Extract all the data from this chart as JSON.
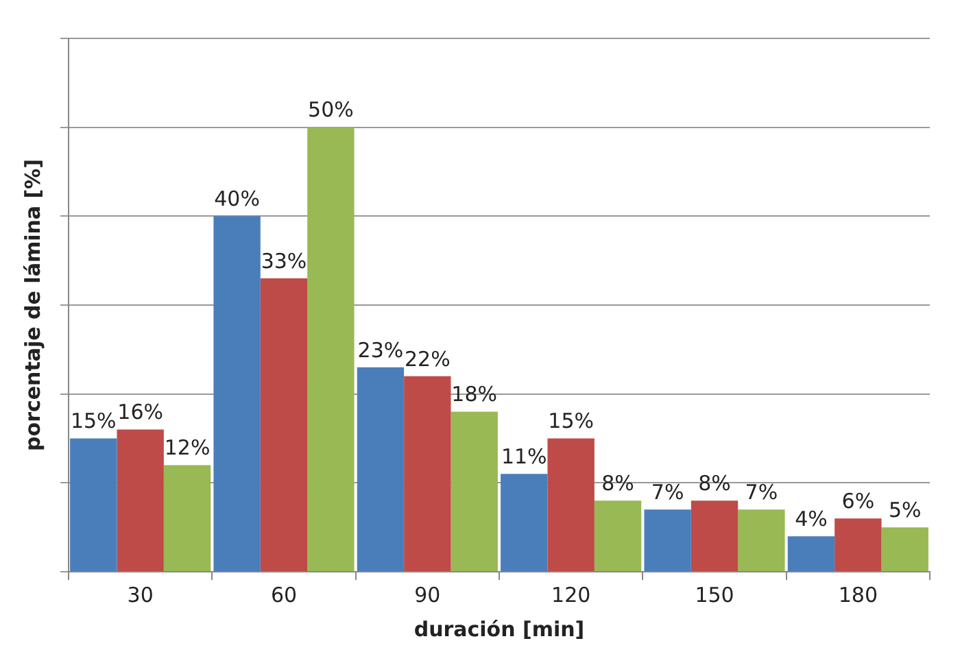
{
  "chart_data": {
    "type": "bar",
    "xlabel": "duración [min]",
    "ylabel": "porcentaje de lámina [%]",
    "categories": [
      "30",
      "60",
      "90",
      "120",
      "150",
      "180"
    ],
    "series": [
      {
        "color": "#4a7ebb",
        "values": [
          15,
          40,
          23,
          11,
          7,
          4
        ],
        "value_labels": [
          "15%",
          "40%",
          "23%",
          "11%",
          "7%",
          "4%"
        ]
      },
      {
        "color": "#be4b48",
        "values": [
          16,
          33,
          22,
          15,
          8,
          6
        ],
        "value_labels": [
          "16%",
          "33%",
          "22%",
          "15%",
          "8%",
          "6%"
        ]
      },
      {
        "color": "#98b954",
        "values": [
          12,
          50,
          18,
          8,
          7,
          5
        ],
        "value_labels": [
          "12%",
          "50%",
          "18%",
          "8%",
          "7%",
          "5%"
        ]
      }
    ],
    "ylim": [
      0,
      60
    ],
    "yticks": [
      {
        "value": 0,
        "label": null
      },
      {
        "value": 10,
        "label": null
      },
      {
        "value": 20,
        "label": null
      },
      {
        "value": 30,
        "label": null
      },
      {
        "value": 40,
        "label": null
      },
      {
        "value": 50,
        "label": null
      },
      {
        "value": 60,
        "label": null
      }
    ],
    "tick_labels": "x",
    "grid": "y",
    "legend": false
  }
}
